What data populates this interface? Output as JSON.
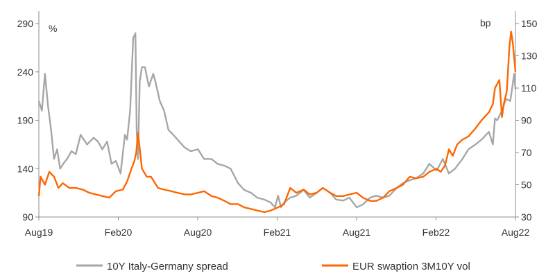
{
  "chart_data": {
    "type": "line",
    "title": "",
    "x_ticks": [
      "Aug19",
      "Feb20",
      "Aug20",
      "Feb21",
      "Aug21",
      "Feb22",
      "Aug22"
    ],
    "left_axis": {
      "unit": "%",
      "ticks": [
        90,
        140,
        190,
        240,
        290
      ],
      "ylim": [
        90,
        290
      ]
    },
    "right_axis": {
      "unit": "bp",
      "ticks": [
        30,
        50,
        70,
        90,
        110,
        130,
        150
      ],
      "ylim": [
        30,
        150
      ]
    },
    "grid": false,
    "legend_position": "bottom",
    "series": [
      {
        "name": "10Y Italy-Germany spread",
        "axis": "left",
        "color": "#a6a6a6",
        "x": [
          "2019-08-01",
          "2019-08-08",
          "2019-08-15",
          "2019-08-22",
          "2019-08-29",
          "2019-09-05",
          "2019-09-12",
          "2019-09-19",
          "2019-09-26",
          "2019-10-05",
          "2019-10-15",
          "2019-10-25",
          "2019-11-05",
          "2019-11-20",
          "2019-12-05",
          "2019-12-15",
          "2019-12-25",
          "2020-01-05",
          "2020-01-15",
          "2020-01-25",
          "2020-02-05",
          "2020-02-15",
          "2020-02-20",
          "2020-02-27",
          "2020-03-05",
          "2020-03-10",
          "2020-03-13",
          "2020-03-16",
          "2020-03-18",
          "2020-03-20",
          "2020-03-25",
          "2020-04-01",
          "2020-04-10",
          "2020-04-20",
          "2020-04-25",
          "2020-05-05",
          "2020-05-15",
          "2020-05-25",
          "2020-06-05",
          "2020-06-15",
          "2020-07-01",
          "2020-07-15",
          "2020-08-01",
          "2020-08-15",
          "2020-09-01",
          "2020-09-15",
          "2020-10-01",
          "2020-10-15",
          "2020-11-01",
          "2020-11-15",
          "2020-12-01",
          "2020-12-15",
          "2021-01-01",
          "2021-01-15",
          "2021-01-25",
          "2021-02-01",
          "2021-02-08",
          "2021-02-15",
          "2021-03-01",
          "2021-03-15",
          "2021-04-01",
          "2021-04-15",
          "2021-05-01",
          "2021-05-15",
          "2021-06-01",
          "2021-06-15",
          "2021-07-01",
          "2021-07-15",
          "2021-08-01",
          "2021-08-15",
          "2021-09-01",
          "2021-09-15",
          "2021-10-01",
          "2021-10-15",
          "2021-11-01",
          "2021-11-15",
          "2021-12-01",
          "2021-12-15",
          "2022-01-01",
          "2022-01-15",
          "2022-02-01",
          "2022-02-15",
          "2022-03-01",
          "2022-03-15",
          "2022-04-01",
          "2022-04-15",
          "2022-05-01",
          "2022-05-15",
          "2022-06-01",
          "2022-06-10",
          "2022-06-15",
          "2022-06-20",
          "2022-07-01",
          "2022-07-10",
          "2022-07-20",
          "2022-07-25",
          "2022-07-29",
          "2022-08-01"
        ],
        "y": [
          210,
          200,
          238,
          205,
          180,
          150,
          160,
          140,
          145,
          150,
          158,
          155,
          175,
          165,
          172,
          168,
          160,
          168,
          145,
          148,
          135,
          175,
          170,
          200,
          275,
          280,
          180,
          150,
          190,
          230,
          245,
          245,
          225,
          238,
          230,
          210,
          200,
          180,
          175,
          170,
          162,
          158,
          160,
          150,
          150,
          145,
          143,
          140,
          125,
          118,
          115,
          110,
          108,
          105,
          100,
          112,
          100,
          105,
          110,
          112,
          118,
          110,
          115,
          120,
          115,
          108,
          107,
          110,
          100,
          103,
          110,
          112,
          110,
          112,
          120,
          125,
          128,
          130,
          135,
          145,
          138,
          150,
          135,
          140,
          150,
          160,
          165,
          170,
          178,
          165,
          192,
          190,
          200,
          212,
          210,
          225,
          238,
          222
        ]
      },
      {
        "name": "EUR swaption 3M10Y vol",
        "axis": "right",
        "color": "#ff6600",
        "x": [
          "2019-08-01",
          "2019-08-05",
          "2019-08-15",
          "2019-08-25",
          "2019-09-05",
          "2019-09-15",
          "2019-09-25",
          "2019-10-10",
          "2019-10-25",
          "2019-11-10",
          "2019-11-25",
          "2019-12-10",
          "2019-12-25",
          "2020-01-10",
          "2020-01-25",
          "2020-02-10",
          "2020-02-20",
          "2020-03-01",
          "2020-03-08",
          "2020-03-12",
          "2020-03-16",
          "2020-03-19",
          "2020-03-25",
          "2020-04-05",
          "2020-04-15",
          "2020-05-01",
          "2020-05-15",
          "2020-06-01",
          "2020-06-15",
          "2020-07-01",
          "2020-07-15",
          "2020-08-01",
          "2020-08-15",
          "2020-09-01",
          "2020-09-15",
          "2020-10-01",
          "2020-10-15",
          "2020-11-01",
          "2020-11-15",
          "2020-12-01",
          "2020-12-15",
          "2021-01-01",
          "2021-01-15",
          "2021-02-01",
          "2021-02-15",
          "2021-03-01",
          "2021-03-15",
          "2021-04-01",
          "2021-04-15",
          "2021-05-01",
          "2021-05-15",
          "2021-06-01",
          "2021-06-15",
          "2021-07-01",
          "2021-07-15",
          "2021-08-01",
          "2021-08-15",
          "2021-09-01",
          "2021-09-15",
          "2021-10-01",
          "2021-10-15",
          "2021-11-01",
          "2021-11-15",
          "2021-12-01",
          "2021-12-15",
          "2022-01-01",
          "2022-01-15",
          "2022-02-01",
          "2022-02-10",
          "2022-02-20",
          "2022-03-01",
          "2022-03-10",
          "2022-03-20",
          "2022-04-01",
          "2022-04-15",
          "2022-05-01",
          "2022-05-15",
          "2022-06-01",
          "2022-06-10",
          "2022-06-15",
          "2022-06-25",
          "2022-07-01",
          "2022-07-05",
          "2022-07-12",
          "2022-07-18",
          "2022-07-22",
          "2022-07-26",
          "2022-08-01"
        ],
        "y": [
          43,
          55,
          50,
          58,
          55,
          48,
          51,
          48,
          48,
          47,
          45,
          44,
          43,
          42,
          46,
          47,
          52,
          60,
          65,
          70,
          82,
          75,
          60,
          55,
          55,
          48,
          47,
          46,
          45,
          44,
          44,
          45,
          46,
          43,
          42,
          40,
          38,
          38,
          36,
          35,
          34,
          33,
          34,
          36,
          38,
          48,
          45,
          47,
          44,
          45,
          48,
          45,
          43,
          43,
          44,
          45,
          42,
          40,
          40,
          42,
          46,
          48,
          50,
          55,
          54,
          55,
          58,
          60,
          58,
          62,
          72,
          68,
          75,
          78,
          80,
          85,
          90,
          95,
          100,
          110,
          115,
          92,
          100,
          108,
          135,
          145,
          138,
          120
        ]
      }
    ]
  }
}
